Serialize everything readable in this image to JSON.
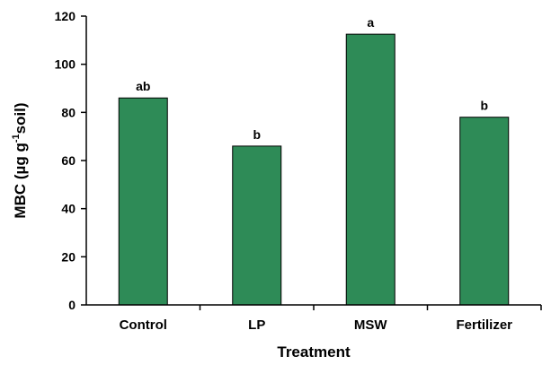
{
  "chart_data": {
    "type": "bar",
    "categories": [
      "Control",
      "LP",
      "MSW",
      "Fertilizer"
    ],
    "values": [
      86,
      66,
      112.5,
      78
    ],
    "data_labels": [
      "ab",
      "b",
      "a",
      "b"
    ],
    "xlabel": "Treatment",
    "ylabel": {
      "main": "MBC (µg g",
      "superscript": "-1",
      "suffix": "soil)"
    },
    "ylim": [
      0,
      120
    ],
    "yticks": [
      0,
      20,
      40,
      60,
      80,
      100,
      120
    ],
    "grid": false,
    "legend": "none",
    "bar_color": "#2e8b57"
  }
}
